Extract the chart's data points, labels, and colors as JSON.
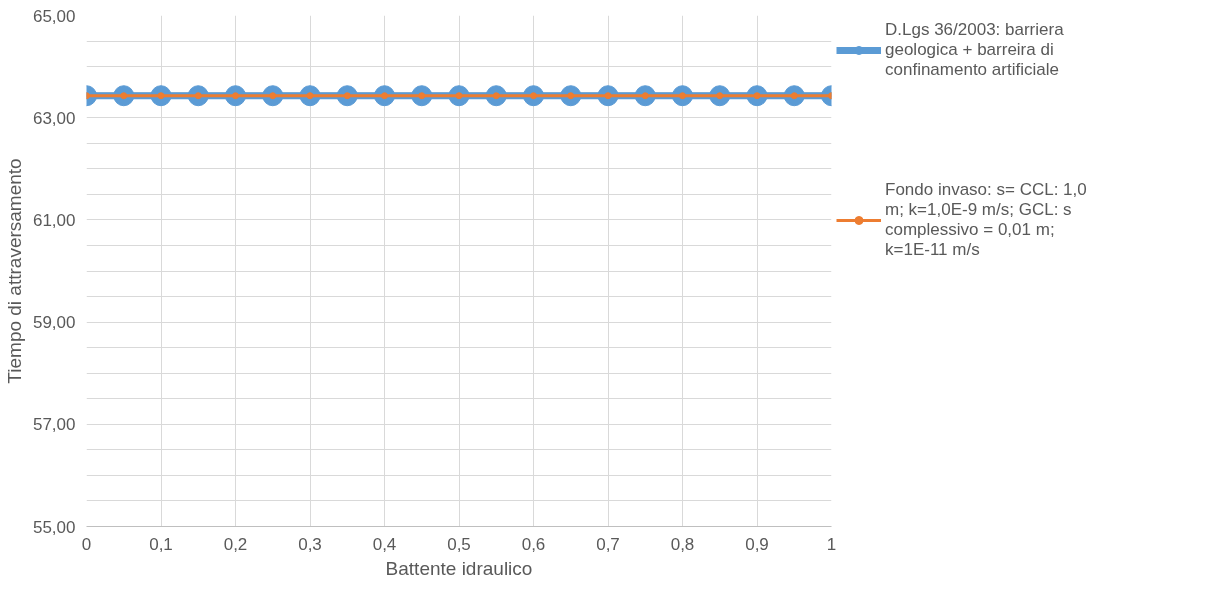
{
  "chart_data": {
    "type": "line",
    "xlabel": "Battente idraulico",
    "ylabel": "Tiempo di attraversamento",
    "x": [
      0,
      0.05,
      0.1,
      0.15,
      0.2,
      0.25,
      0.3,
      0.35,
      0.4,
      0.45,
      0.5,
      0.55,
      0.6,
      0.65,
      0.7,
      0.75,
      0.8,
      0.85,
      0.9,
      0.95,
      1
    ],
    "series": [
      {
        "name": "D.Lgs 36/2003: barriera geologica + barreira di confinamento artificiale",
        "color": "#5b9bd5",
        "marker": "circle",
        "values": [
          63.43,
          63.43,
          63.43,
          63.43,
          63.43,
          63.43,
          63.43,
          63.43,
          63.43,
          63.43,
          63.43,
          63.43,
          63.43,
          63.43,
          63.43,
          63.43,
          63.43,
          63.43,
          63.43,
          63.43,
          63.43
        ]
      },
      {
        "name": "Fondo invaso: s= CCL: 1,0 m; k=1,0E-9 m/s; GCL: s complessivo = 0,01 m; k=1E-11 m/s",
        "color": "#ed7d31",
        "marker": "circle",
        "values": [
          63.43,
          63.43,
          63.43,
          63.43,
          63.43,
          63.43,
          63.43,
          63.43,
          63.43,
          63.43,
          63.43,
          63.43,
          63.43,
          63.43,
          63.43,
          63.43,
          63.43,
          63.43,
          63.43,
          63.43,
          63.43
        ]
      }
    ],
    "xlim": [
      0,
      1
    ],
    "xticks": [
      {
        "value": 0,
        "label": "0"
      },
      {
        "value": 0.1,
        "label": "0,1"
      },
      {
        "value": 0.2,
        "label": "0,2"
      },
      {
        "value": 0.3,
        "label": "0,3"
      },
      {
        "value": 0.4,
        "label": "0,4"
      },
      {
        "value": 0.5,
        "label": "0,5"
      },
      {
        "value": 0.6,
        "label": "0,6"
      },
      {
        "value": 0.7,
        "label": "0,7"
      },
      {
        "value": 0.8,
        "label": "0,8"
      },
      {
        "value": 0.9,
        "label": "0,9"
      },
      {
        "value": 1,
        "label": "1"
      }
    ],
    "ylim": [
      55,
      65
    ],
    "yticks": [
      {
        "value": 55,
        "label": "55,00"
      },
      {
        "value": 55.5,
        "label": null
      },
      {
        "value": 56,
        "label": null
      },
      {
        "value": 56.5,
        "label": null
      },
      {
        "value": 57,
        "label": "57,00"
      },
      {
        "value": 57.5,
        "label": null
      },
      {
        "value": 58,
        "label": null
      },
      {
        "value": 58.5,
        "label": null
      },
      {
        "value": 59,
        "label": "59,00"
      },
      {
        "value": 59.5,
        "label": null
      },
      {
        "value": 60,
        "label": null
      },
      {
        "value": 60.5,
        "label": null
      },
      {
        "value": 61,
        "label": "61,00"
      },
      {
        "value": 61.5,
        "label": null
      },
      {
        "value": 62,
        "label": null
      },
      {
        "value": 62.5,
        "label": null
      },
      {
        "value": 63,
        "label": "63,00"
      },
      {
        "value": 63.5,
        "label": null
      },
      {
        "value": 64,
        "label": null
      },
      {
        "value": 64.5,
        "label": null
      },
      {
        "value": 65,
        "label": "65,00"
      }
    ],
    "grid": true,
    "legend": "right"
  }
}
